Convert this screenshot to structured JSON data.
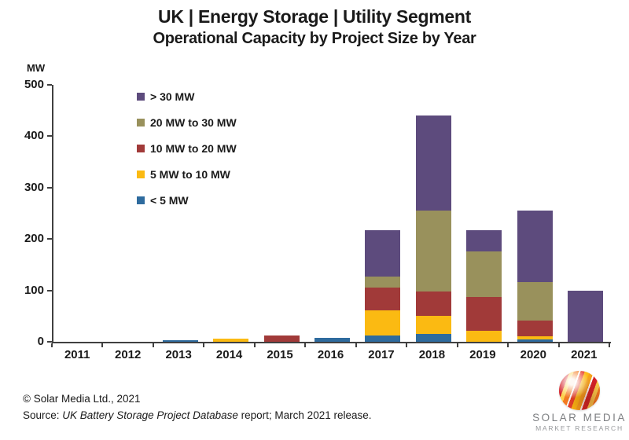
{
  "header": {
    "title": "UK | Energy Storage | Utility Segment",
    "subtitle": "Operational Capacity by Project Size by Year"
  },
  "footer": {
    "copyright": "© Solar Media Ltd., 2021",
    "source_prefix": "Source: ",
    "source_italic": "UK Battery Storage Project Database",
    "source_suffix": " report; March 2021 release."
  },
  "logo": {
    "name": "SOLAR MEDIA",
    "tagline": "MARKET RESEARCH"
  },
  "chart_data": {
    "type": "bar",
    "stacked": true,
    "title": "UK | Energy Storage | Utility Segment",
    "subtitle": "Operational Capacity by Project Size by Year",
    "ylabel": "MW",
    "xlabel": "",
    "ylim": [
      0,
      500
    ],
    "ytick_step": 100,
    "grid": false,
    "legend_position": "top-left",
    "categories": [
      "2011",
      "2012",
      "2013",
      "2014",
      "2015",
      "2016",
      "2017",
      "2018",
      "2019",
      "2020",
      "2021"
    ],
    "series": [
      {
        "name": "< 5 MW",
        "color": "#2E6B9E",
        "values": [
          0,
          0,
          3,
          0,
          0,
          8,
          13,
          16,
          0,
          5,
          0
        ]
      },
      {
        "name": "5 MW to 10 MW",
        "color": "#FBBA12",
        "values": [
          0,
          0,
          0,
          6,
          0,
          0,
          48,
          34,
          21,
          6,
          0
        ]
      },
      {
        "name": "10 MW to 20 MW",
        "color": "#A13A39",
        "values": [
          0,
          0,
          0,
          0,
          12,
          0,
          45,
          48,
          66,
          30,
          0
        ]
      },
      {
        "name": "20 MW to 30 MW",
        "color": "#99915C",
        "values": [
          0,
          0,
          0,
          0,
          0,
          0,
          21,
          158,
          89,
          75,
          0
        ]
      },
      {
        "name": "> 30 MW",
        "color": "#5D4B7D",
        "values": [
          0,
          0,
          0,
          0,
          0,
          0,
          90,
          184,
          41,
          140,
          100
        ]
      }
    ],
    "totals": [
      0,
      0,
      3,
      6,
      12,
      8,
      217,
      440,
      217,
      256,
      100
    ]
  }
}
